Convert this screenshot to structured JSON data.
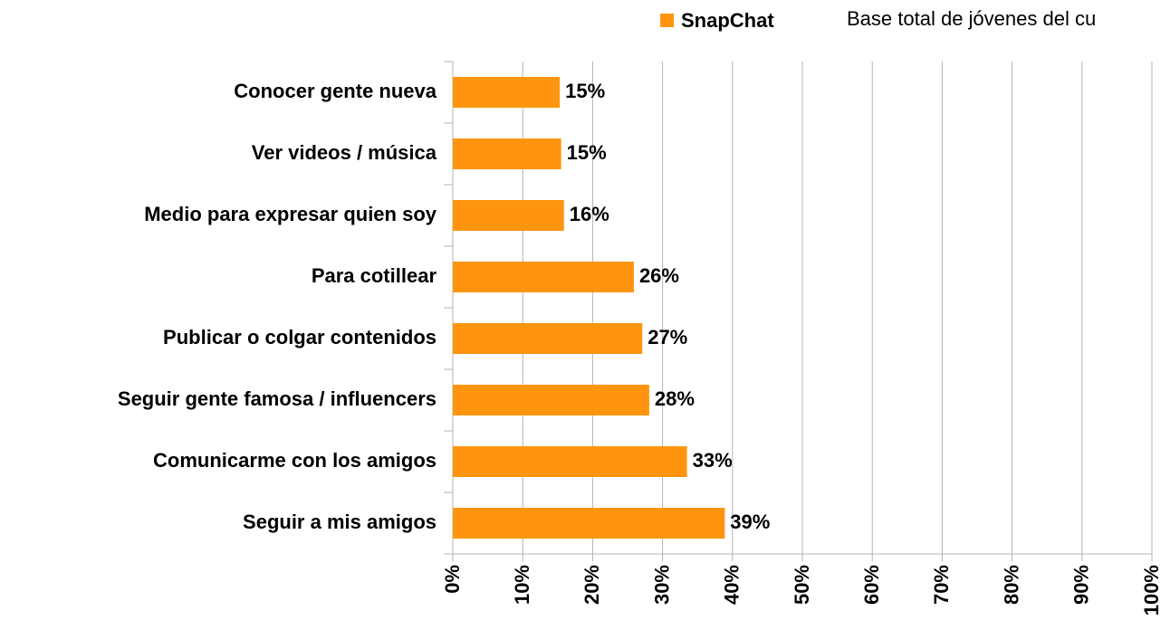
{
  "chart_data": {
    "type": "hbar",
    "categories": [
      "Conocer gente nueva",
      "Ver videos / música",
      "Medio para expresar quien soy",
      "Para cotillear",
      "Publicar o colgar contenidos",
      "Seguir gente famosa / influencers",
      "Comunicarme con los amigos",
      "Seguir a mis amigos"
    ],
    "series": [
      {
        "name": "SnapChat",
        "color": "#ff950e",
        "values": [
          15.3,
          15.5,
          15.9,
          25.9,
          27.1,
          28.1,
          33.5,
          38.9
        ],
        "value_labels": [
          "15%",
          "15%",
          "16%",
          "26%",
          "27%",
          "28%",
          "33%",
          "39%"
        ]
      }
    ],
    "annotation": "Base total de jóvenes del cu",
    "xlim": [
      0,
      100
    ],
    "xticks": [
      {
        "value": 0,
        "label": "0%"
      },
      {
        "value": 10,
        "label": "10%"
      },
      {
        "value": 20,
        "label": "20%"
      },
      {
        "value": 30,
        "label": "30%"
      },
      {
        "value": 40,
        "label": "40%"
      },
      {
        "value": 50,
        "label": "50%"
      },
      {
        "value": 60,
        "label": "60%"
      },
      {
        "value": 70,
        "label": "70%"
      },
      {
        "value": 80,
        "label": "80%"
      },
      {
        "value": 90,
        "label": "90%"
      },
      {
        "value": 100,
        "label": "100%"
      }
    ],
    "grid": true,
    "legend": "top"
  }
}
